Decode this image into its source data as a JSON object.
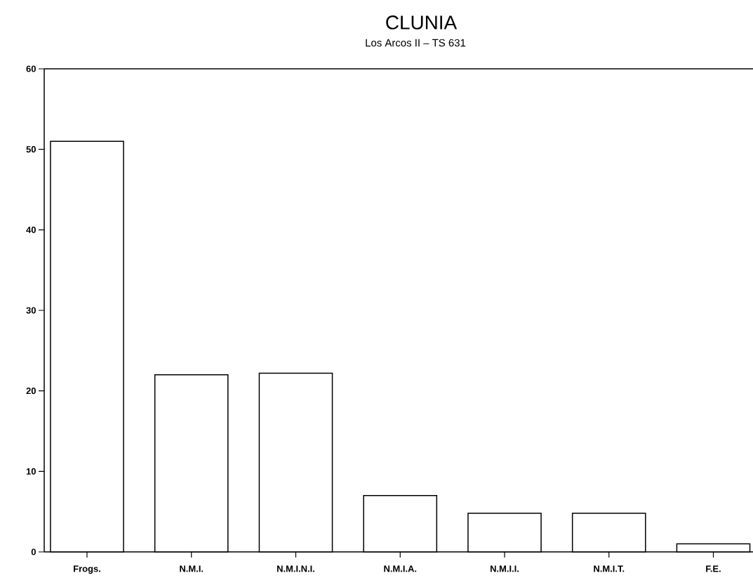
{
  "chart_data": {
    "type": "bar",
    "title": "CLUNIA",
    "subtitle": "Los Arcos II – TS 631",
    "categories": [
      "Frogs.",
      "N.M.I.",
      "N.M.I.N.I.",
      "N.M.I.A.",
      "N.M.I.I.",
      "N.M.I.T.",
      "F.E."
    ],
    "values": [
      51,
      22,
      22.2,
      7,
      4.8,
      4.8,
      1
    ],
    "color": "#000000",
    "ylim": [
      0,
      60
    ],
    "yticks": [
      0,
      10,
      20,
      30,
      40,
      50,
      60
    ]
  }
}
